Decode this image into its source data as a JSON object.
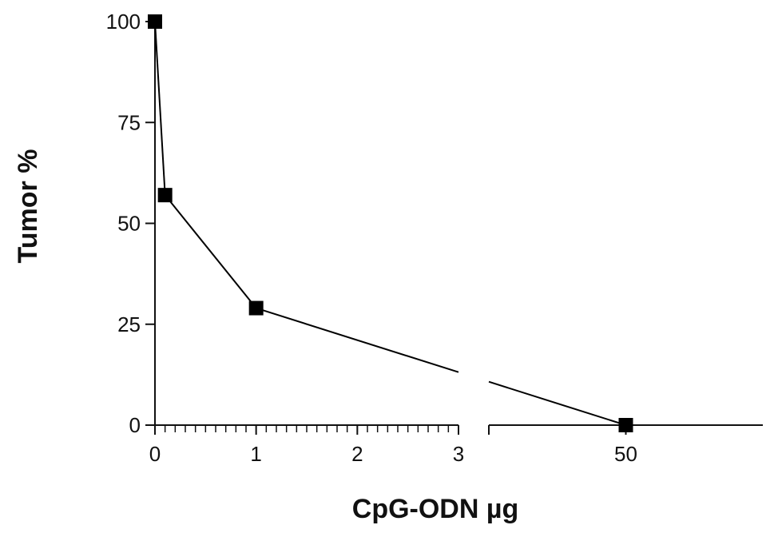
{
  "chart_data": {
    "type": "line",
    "title": "",
    "xlabel": "CpG-ODN µg",
    "ylabel": "Tumor %",
    "x_axis": {
      "broken": true,
      "segments": [
        {
          "xlim": [
            0,
            3
          ],
          "ticks": [
            0,
            1,
            2,
            3
          ],
          "tick_labels": [
            "0",
            "1",
            "2",
            "3"
          ],
          "minor_step": 0.1
        },
        {
          "xlim": [
            40,
            60
          ],
          "ticks": [
            50
          ],
          "tick_labels": [
            "50"
          ]
        }
      ]
    },
    "ylim": [
      0,
      100
    ],
    "y_ticks": [
      0,
      25,
      50,
      75,
      100
    ],
    "y_tick_labels": [
      "0",
      "25",
      "50",
      "75",
      "100"
    ],
    "grid": false,
    "legend": "none",
    "series": [
      {
        "x": [
          0,
          0.1,
          1,
          50
        ],
        "y": [
          100,
          57,
          29,
          0
        ],
        "marker": "square",
        "color": "#000000"
      }
    ]
  }
}
